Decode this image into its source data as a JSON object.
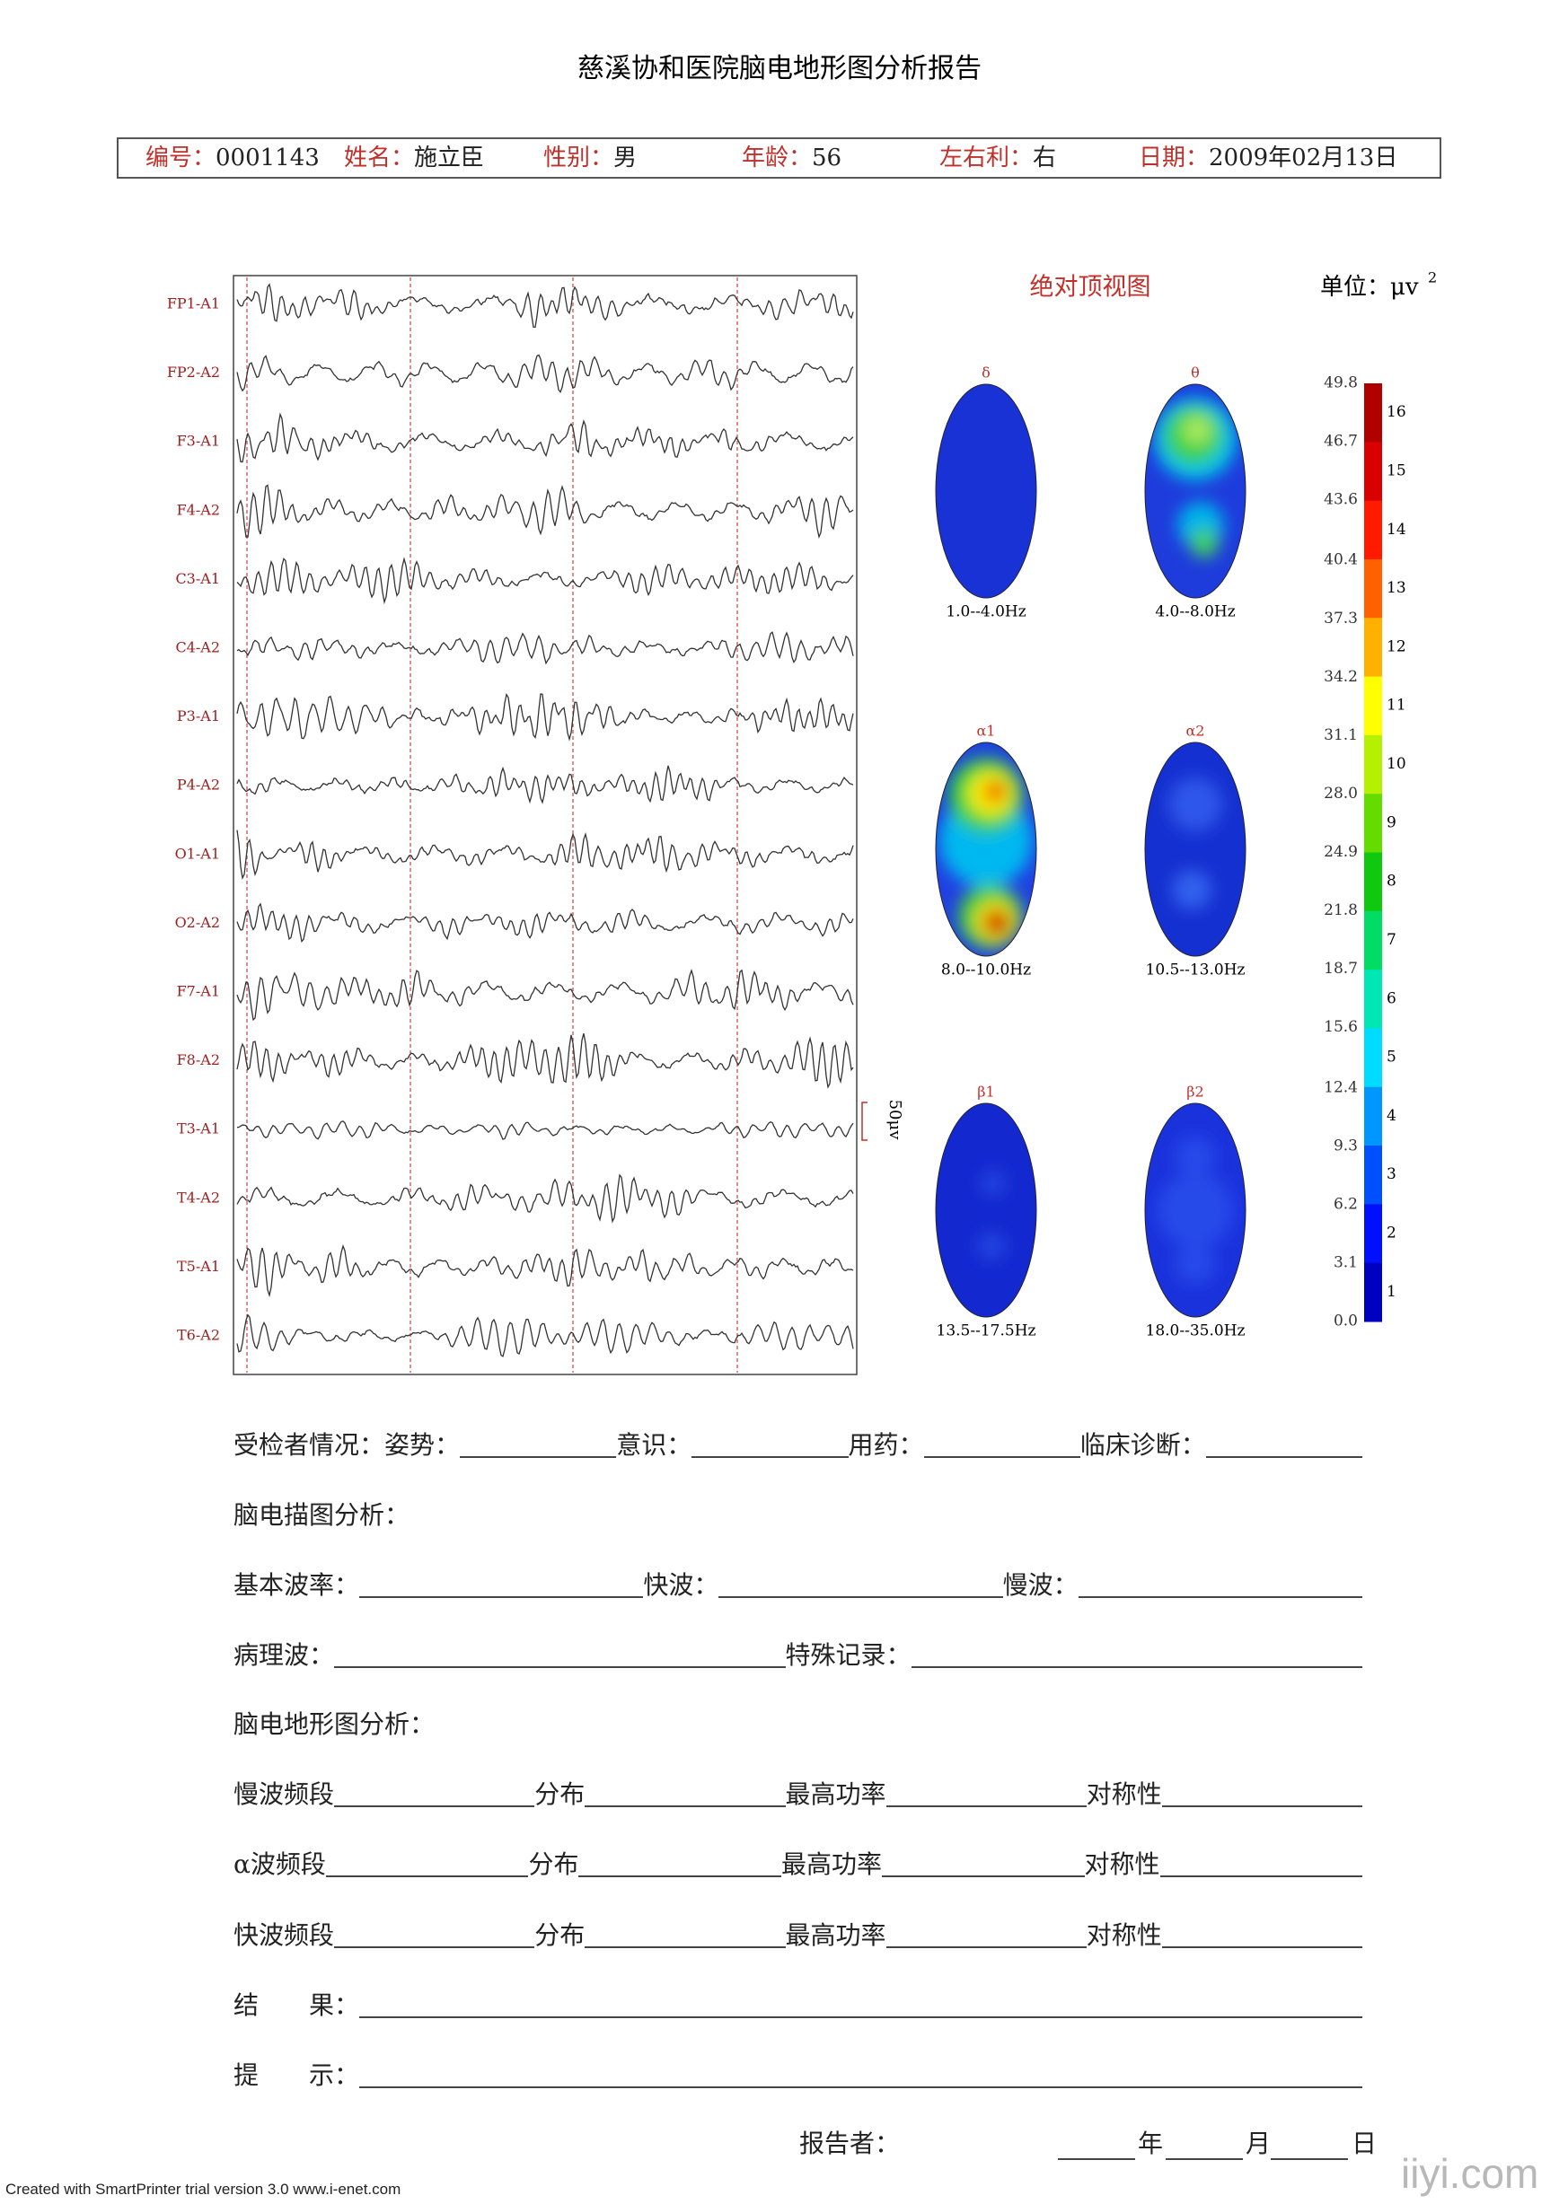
{
  "header": {
    "title": "慈溪协和医院脑电地形图分析报告",
    "fields": [
      {
        "label": "编号：",
        "value": "0001143"
      },
      {
        "label": "姓名：",
        "value": "施立臣"
      },
      {
        "label": "性别：",
        "value": "男"
      },
      {
        "label": "年龄：",
        "value": "56"
      },
      {
        "label": "左右利：",
        "value": "右"
      },
      {
        "label": "日期：",
        "value": "2009年02月13日"
      }
    ]
  },
  "eeg": {
    "channels": [
      "FP1-A1",
      "FP2-A2",
      "F3-A1",
      "F4-A2",
      "C3-A1",
      "C4-A2",
      "P3-A1",
      "P4-A2",
      "O1-A1",
      "O2-A2",
      "F7-A1",
      "F8-A2",
      "T3-A1",
      "T4-A2",
      "T5-A1",
      "T6-A2"
    ],
    "scale_label": "50μv"
  },
  "maps": {
    "title": "绝对顶视图",
    "unit": "单位：μv",
    "unit_power": "2",
    "panels": [
      {
        "band": "δ",
        "range": "1.0--4.0Hz"
      },
      {
        "band": "θ",
        "range": "4.0--8.0Hz"
      },
      {
        "band": "α1",
        "range": "8.0--10.0Hz"
      },
      {
        "band": "α2",
        "range": "10.5--13.0Hz"
      },
      {
        "band": "β1",
        "range": "13.5--17.5Hz"
      },
      {
        "band": "β2",
        "range": "18.0--35.0Hz"
      }
    ]
  },
  "colorbar": {
    "range": [
      0,
      49.8
    ],
    "ticks": [
      49.8,
      46.7,
      43.6,
      40.4,
      37.3,
      34.2,
      31.1,
      {
        "value": 28,
        "label": "28.0"
      },
      24.9,
      21.8,
      18.7,
      15.6,
      12.4,
      9.3,
      6.2,
      3.1,
      {
        "value": 0,
        "label": "0.0"
      }
    ],
    "levels": [
      {
        "label": 16,
        "color": "#b00000"
      },
      {
        "label": 15,
        "color": "#d80000"
      },
      {
        "label": 14,
        "color": "#ff1a00"
      },
      {
        "label": 13,
        "color": "#ff6000"
      },
      {
        "label": 12,
        "color": "#ffb000"
      },
      {
        "label": 11,
        "color": "#ffff00"
      },
      {
        "label": 10,
        "color": "#b4f000"
      },
      {
        "label": 9,
        "color": "#64dc00"
      },
      {
        "label": 8,
        "color": "#10c810"
      },
      {
        "label": 7,
        "color": "#00dc64"
      },
      {
        "label": 6,
        "color": "#00e6b4"
      },
      {
        "label": 5,
        "color": "#00dcff"
      },
      {
        "label": 4,
        "color": "#0096ff"
      },
      {
        "label": 3,
        "color": "#0050ff"
      },
      {
        "label": 2,
        "color": "#0010ff"
      },
      {
        "label": 1,
        "color": "#0000c0"
      }
    ]
  },
  "form": {
    "rows": [
      [
        "受检者情况：姿势：",
        "意识：",
        "用药：",
        "临床诊断："
      ],
      [
        "脑电描图分析："
      ],
      [
        "基本波率：",
        "快波：",
        "慢波："
      ],
      [
        "病理波：",
        "特殊记录："
      ],
      [
        "脑电地形图分析："
      ],
      [
        "慢波频段",
        "分布",
        "最高功率",
        "对称性"
      ],
      [
        "α波频段",
        "分布",
        "最高功率",
        "对称性"
      ],
      [
        "快波频段",
        "分布",
        "最高功率",
        "对称性"
      ],
      [
        "结　　果："
      ],
      [
        "提　　示："
      ]
    ]
  },
  "footer": {
    "reporter": "报告者：",
    "year": "年",
    "month": "月",
    "day": "日",
    "credit": "Created with SmartPrinter trial version 3.0  www.i-enet.com",
    "watermark": "iiyi.com"
  }
}
